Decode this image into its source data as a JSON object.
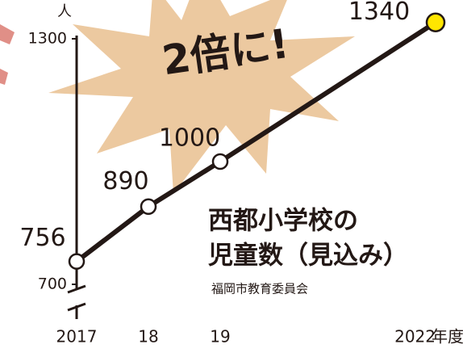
{
  "chart_data": {
    "type": "line",
    "annotation": "2倍に!",
    "title_lines": [
      "西都小学校の",
      "児童数（見込み）"
    ],
    "source": "福岡市教育委員会",
    "ylabel": "人",
    "xlabel": "年度",
    "x": [
      2017,
      2018,
      2019,
      2022
    ],
    "values": [
      756,
      890,
      1000,
      1340
    ],
    "color": "#231815",
    "marker_color": "#ffffff",
    "highlight_color": "#ffe600",
    "xlim": [
      2017,
      2022
    ],
    "xticks": [
      2017,
      {
        "value": 2018,
        "label": "18"
      },
      {
        "value": 2019,
        "label": "19"
      },
      2022
    ],
    "ylim": [
      700,
      1300
    ],
    "yticks": [
      700,
      1300
    ]
  }
}
